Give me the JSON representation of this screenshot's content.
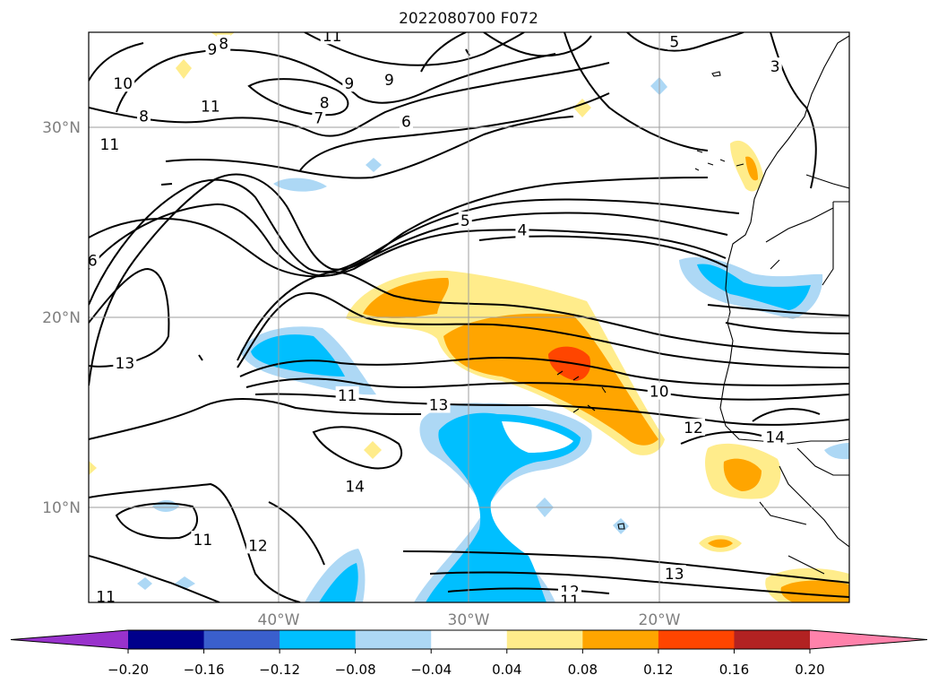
{
  "chart_data": {
    "type": "contour_map",
    "title": "2022080700 F072",
    "x_ticks": [
      "40°W",
      "30°W",
      "20°W"
    ],
    "y_ticks": [
      "30°N",
      "20°N",
      "10°N"
    ],
    "lon_range": [
      -50,
      -10
    ],
    "lat_range": [
      5,
      35
    ],
    "grid": true,
    "colorbar": {
      "orientation": "horizontal",
      "extend": "both",
      "levels": [
        -0.2,
        -0.16,
        -0.12,
        -0.08,
        -0.04,
        0.04,
        0.08,
        0.12,
        0.16,
        0.2
      ],
      "tick_labels": [
        "−0.20",
        "−0.16",
        "−0.12",
        "−0.08",
        "−0.04",
        "0.04",
        "0.08",
        "0.12",
        "0.16",
        "0.20"
      ],
      "colors": [
        "#9932cc",
        "#00008b",
        "#3a5fcd",
        "#00bfff",
        "#add8f5",
        "#ffffff",
        "#ffec8b",
        "#ffa500",
        "#ff4500",
        "#b22222",
        "#ff82ab"
      ]
    },
    "contour_labels": [
      {
        "text": "10",
        "lon": -48.2,
        "lat": 32.3
      },
      {
        "text": "9",
        "lon": -43.5,
        "lat": 34.1
      },
      {
        "text": "8",
        "lon": -42.9,
        "lat": 34.4
      },
      {
        "text": "9",
        "lon": -36.3,
        "lat": 32.3
      },
      {
        "text": "9",
        "lon": -34.2,
        "lat": 32.5
      },
      {
        "text": "8",
        "lon": -37.6,
        "lat": 31.3
      },
      {
        "text": "7",
        "lon": -37.9,
        "lat": 30.5
      },
      {
        "text": "6",
        "lon": -33.3,
        "lat": 30.3
      },
      {
        "text": "11",
        "lon": -37.2,
        "lat": 34.8
      },
      {
        "text": "11",
        "lon": -43.6,
        "lat": 31.1
      },
      {
        "text": "8",
        "lon": -47.1,
        "lat": 30.6
      },
      {
        "text": "11",
        "lon": -48.9,
        "lat": 29.1
      },
      {
        "text": "5",
        "lon": -19.2,
        "lat": 34.5
      },
      {
        "text": "3",
        "lon": -13.9,
        "lat": 33.2
      },
      {
        "text": "5",
        "lon": -30.2,
        "lat": 25.1
      },
      {
        "text": "4",
        "lon": -27.2,
        "lat": 24.6
      },
      {
        "text": "6",
        "lon": -49.8,
        "lat": 23.0
      },
      {
        "text": "13",
        "lon": -48.1,
        "lat": 17.6
      },
      {
        "text": "11",
        "lon": -36.4,
        "lat": 15.9
      },
      {
        "text": "13",
        "lon": -31.6,
        "lat": 15.4
      },
      {
        "text": "10",
        "lon": -20.0,
        "lat": 16.1
      },
      {
        "text": "12",
        "lon": -18.2,
        "lat": 14.2
      },
      {
        "text": "14",
        "lon": -13.9,
        "lat": 13.7
      },
      {
        "text": "14",
        "lon": -36.0,
        "lat": 11.1
      },
      {
        "text": "11",
        "lon": -44.0,
        "lat": 8.3
      },
      {
        "text": "12",
        "lon": -41.1,
        "lat": 8.0
      },
      {
        "text": "11",
        "lon": -49.1,
        "lat": 5.3
      },
      {
        "text": "13",
        "lon": -19.2,
        "lat": 6.5
      },
      {
        "text": "12",
        "lon": -24.7,
        "lat": 5.6
      },
      {
        "text": "11",
        "lon": -24.7,
        "lat": 5.1
      }
    ]
  }
}
